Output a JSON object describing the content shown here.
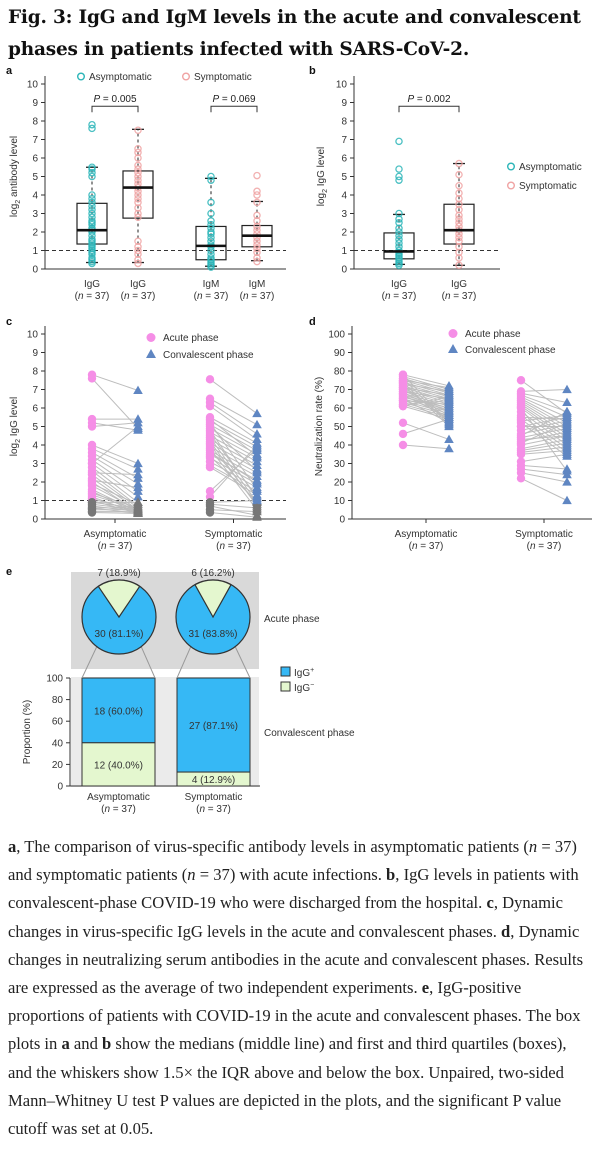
{
  "figure": {
    "title": "Fig. 3: IgG and IgM levels in the acute and convalescent phases in patients infected with SARS-CoV-2."
  },
  "colors": {
    "asymptomatic": "#2bb5b8",
    "symptomatic": "#f0a3a3",
    "acute": "#f58ee6",
    "convalescent": "#5f86c2",
    "below_cutoff": "#777777",
    "igg_positive": "#36b8f5",
    "igg_negative": "#e4f7cf",
    "panel_e_bg": "#d9d9d9",
    "panel_e_bg_light": "#ebebeb"
  },
  "chart_data": [
    {
      "panel": "a",
      "type": "box",
      "ylabel": "log2 antibody level",
      "ylim": [
        0,
        10
      ],
      "yticks": [
        0,
        1,
        2,
        3,
        4,
        5,
        6,
        7,
        8,
        9,
        10
      ],
      "cutoff_line": 1,
      "legend": [
        "Asymptomatic",
        "Symptomatic"
      ],
      "legend_placement": "top",
      "categories": [
        {
          "label": "IgG",
          "n": "(n = 37)",
          "group": "Asymptomatic"
        },
        {
          "label": "IgG",
          "n": "(n = 37)",
          "group": "Symptomatic"
        },
        {
          "label": "IgM",
          "n": "(n = 37)",
          "group": "Asymptomatic"
        },
        {
          "label": "IgM",
          "n": "(n = 37)",
          "group": "Symptomatic"
        }
      ],
      "boxes": [
        {
          "q1": 1.35,
          "median": 2.1,
          "q3": 3.55,
          "whisker_low": 0.35,
          "whisker_high": 5.5,
          "points": [
            0.3,
            0.4,
            0.5,
            0.6,
            0.8,
            0.9,
            1.0,
            1.1,
            1.2,
            1.3,
            1.4,
            1.5,
            1.6,
            1.8,
            2.0,
            2.1,
            2.2,
            2.4,
            2.5,
            2.6,
            2.8,
            3.0,
            3.2,
            3.4,
            3.6,
            3.8,
            4.0,
            5.0,
            5.2,
            5.4,
            5.5,
            7.6,
            7.8
          ]
        },
        {
          "q1": 2.75,
          "median": 4.4,
          "q3": 5.3,
          "whisker_low": 0.35,
          "whisker_high": 7.55,
          "points": [
            0.3,
            0.5,
            0.8,
            1.0,
            1.2,
            1.5,
            2.8,
            3.0,
            3.3,
            3.6,
            3.8,
            4.0,
            4.2,
            4.4,
            4.6,
            4.8,
            5.0,
            5.2,
            5.4,
            5.6,
            6.0,
            6.3,
            6.5,
            7.5
          ]
        },
        {
          "q1": 0.5,
          "median": 1.25,
          "q3": 2.3,
          "whisker_low": 0.15,
          "whisker_high": 4.9,
          "points": [
            0.1,
            0.2,
            0.3,
            0.4,
            0.5,
            0.6,
            0.8,
            1.0,
            1.2,
            1.3,
            1.5,
            1.7,
            1.9,
            2.0,
            2.2,
            2.4,
            2.6,
            3.0,
            3.6,
            4.8,
            5.0
          ]
        },
        {
          "q1": 1.2,
          "median": 1.8,
          "q3": 2.35,
          "whisker_low": 0.45,
          "whisker_high": 3.65,
          "points": [
            0.4,
            0.6,
            0.9,
            1.1,
            1.3,
            1.5,
            1.7,
            1.9,
            2.1,
            2.3,
            2.6,
            2.9,
            3.6,
            4.0,
            4.2,
            5.05
          ]
        }
      ],
      "comparisons": [
        {
          "between": [
            0,
            1
          ],
          "label": "P = 0.005",
          "y": 8.8
        },
        {
          "between": [
            2,
            3
          ],
          "label": "P = 0.069",
          "y": 8.8
        }
      ]
    },
    {
      "panel": "b",
      "type": "box",
      "ylabel": "log2 IgG level",
      "ylim": [
        0,
        10
      ],
      "yticks": [
        0,
        1,
        2,
        3,
        4,
        5,
        6,
        7,
        8,
        9,
        10
      ],
      "cutoff_line": 1,
      "legend": [
        "Asymptomatic",
        "Symptomatic"
      ],
      "legend_placement": "right",
      "categories": [
        {
          "label": "IgG",
          "n": "(n = 37)",
          "group": "Asymptomatic"
        },
        {
          "label": "IgG",
          "n": "(n = 37)",
          "group": "Symptomatic"
        }
      ],
      "boxes": [
        {
          "q1": 0.55,
          "median": 0.95,
          "q3": 1.95,
          "whisker_low": 0.25,
          "whisker_high": 2.95,
          "points": [
            0.2,
            0.3,
            0.4,
            0.5,
            0.6,
            0.7,
            0.8,
            0.9,
            1.0,
            1.2,
            1.4,
            1.6,
            1.8,
            2.0,
            2.2,
            2.5,
            2.7,
            3.0,
            4.8,
            5.0,
            5.4,
            6.9
          ]
        },
        {
          "q1": 1.35,
          "median": 2.1,
          "q3": 3.5,
          "whisker_low": 0.2,
          "whisker_high": 5.7,
          "points": [
            0.2,
            0.6,
            0.9,
            1.2,
            1.5,
            1.7,
            1.9,
            2.1,
            2.3,
            2.5,
            2.7,
            2.9,
            3.2,
            3.5,
            3.8,
            4.1,
            4.5,
            5.1,
            5.7
          ]
        }
      ],
      "comparisons": [
        {
          "between": [
            0,
            1
          ],
          "label": "P = 0.002",
          "y": 8.8
        }
      ]
    },
    {
      "panel": "c",
      "type": "paired-scatter",
      "ylabel": "log2 IgG level",
      "ylim": [
        0,
        10
      ],
      "yticks": [
        0,
        1,
        2,
        3,
        4,
        5,
        6,
        7,
        8,
        9,
        10
      ],
      "cutoff_line": 1,
      "legend": [
        "Acute phase",
        "Convalescent phase"
      ],
      "legend_placement": "top",
      "categories": [
        {
          "label": "Asymptomatic",
          "n": "(n = 37)"
        },
        {
          "label": "Symptomatic",
          "n": "(n = 37)"
        }
      ],
      "pairs": [
        [
          [
            7.8,
            6.95
          ],
          [
            7.6,
            4.9
          ],
          [
            5.4,
            5.4
          ],
          [
            5.2,
            4.8
          ],
          [
            5.0,
            5.2
          ],
          [
            4.0,
            3.0
          ],
          [
            3.8,
            2.7
          ],
          [
            3.6,
            2.2
          ],
          [
            3.4,
            1.9
          ],
          [
            3.2,
            1.5
          ],
          [
            3.0,
            1.2
          ],
          [
            2.8,
            0.9
          ],
          [
            2.6,
            0.7
          ],
          [
            2.4,
            0.6
          ],
          [
            2.2,
            0.5
          ],
          [
            2.0,
            0.4
          ],
          [
            1.8,
            0.5
          ],
          [
            1.6,
            0.4
          ],
          [
            1.5,
            0.3
          ],
          [
            1.4,
            0.6
          ],
          [
            1.3,
            0.5
          ],
          [
            1.2,
            0.3
          ],
          [
            1.1,
            0.4
          ],
          [
            1.0,
            0.3
          ],
          [
            0.9,
            0.6
          ],
          [
            0.8,
            0.5
          ],
          [
            0.7,
            0.4
          ],
          [
            0.6,
            0.3
          ],
          [
            0.5,
            0.5
          ],
          [
            0.4,
            0.4
          ],
          [
            0.35,
            0.3
          ],
          [
            3.0,
            5.0
          ],
          [
            2.5,
            2.4
          ],
          [
            2.1,
            1.7
          ],
          [
            1.9,
            0.8
          ],
          [
            0.9,
            0.9
          ],
          [
            0.6,
            0.6
          ]
        ],
        [
          [
            7.55,
            5.7
          ],
          [
            6.5,
            5.1
          ],
          [
            6.3,
            4.6
          ],
          [
            6.1,
            4.3
          ],
          [
            5.5,
            4.1
          ],
          [
            5.3,
            3.9
          ],
          [
            5.1,
            3.7
          ],
          [
            4.9,
            3.5
          ],
          [
            4.7,
            3.3
          ],
          [
            4.5,
            3.1
          ],
          [
            4.3,
            2.9
          ],
          [
            4.1,
            2.7
          ],
          [
            3.9,
            2.5
          ],
          [
            3.7,
            2.3
          ],
          [
            3.5,
            2.1
          ],
          [
            3.3,
            1.9
          ],
          [
            3.1,
            1.7
          ],
          [
            2.9,
            1.5
          ],
          [
            2.8,
            1.3
          ],
          [
            4.8,
            1.1
          ],
          [
            4.4,
            0.9
          ],
          [
            4.0,
            0.8
          ],
          [
            3.6,
            2.0
          ],
          [
            5.0,
            2.6
          ],
          [
            5.4,
            3.4
          ],
          [
            5.2,
            1.6
          ],
          [
            4.6,
            1.2
          ],
          [
            4.2,
            0.7
          ],
          [
            3.8,
            0.5
          ],
          [
            3.4,
            0.95
          ],
          [
            1.5,
            3.8
          ],
          [
            1.2,
            4.0
          ],
          [
            0.9,
            1.0
          ],
          [
            0.8,
            0.6
          ],
          [
            0.7,
            0.2
          ],
          [
            0.35,
            0.1
          ],
          [
            0.5,
            0.4
          ]
        ]
      ]
    },
    {
      "panel": "d",
      "type": "paired-scatter",
      "ylabel": "Neutralization rate (%)",
      "ylim": [
        0,
        100
      ],
      "yticks": [
        0,
        10,
        20,
        30,
        40,
        50,
        60,
        70,
        80,
        90,
        100
      ],
      "legend": [
        "Acute phase",
        "Convalescent phase"
      ],
      "legend_placement": "top",
      "categories": [
        {
          "label": "Asymptomatic",
          "n": "(n = 37)"
        },
        {
          "label": "Symptomatic",
          "n": "(n = 37)"
        }
      ],
      "pairs": [
        [
          [
            78,
            72
          ],
          [
            77,
            70
          ],
          [
            76,
            69
          ],
          [
            75,
            68
          ],
          [
            74,
            67
          ],
          [
            73,
            66
          ],
          [
            72,
            65
          ],
          [
            71,
            64
          ],
          [
            70,
            63
          ],
          [
            69,
            62
          ],
          [
            68,
            61
          ],
          [
            67,
            60
          ],
          [
            66,
            59
          ],
          [
            65,
            58
          ],
          [
            64,
            57
          ],
          [
            63,
            56
          ],
          [
            62,
            55
          ],
          [
            61,
            54
          ],
          [
            78,
            52
          ],
          [
            76,
            51
          ],
          [
            74,
            50
          ],
          [
            72,
            53
          ],
          [
            70,
            56
          ],
          [
            68,
            58
          ],
          [
            66,
            60
          ],
          [
            64,
            62
          ],
          [
            62,
            64
          ],
          [
            61,
            66
          ],
          [
            75,
            71
          ],
          [
            73,
            69
          ],
          [
            71,
            67
          ],
          [
            69,
            65
          ],
          [
            67,
            55
          ],
          [
            65,
            52
          ],
          [
            52,
            43
          ],
          [
            46,
            54
          ],
          [
            40,
            38
          ]
        ],
        [
          [
            75,
            57
          ],
          [
            69,
            70
          ],
          [
            68,
            63
          ],
          [
            67,
            58
          ],
          [
            66,
            55
          ],
          [
            65,
            52
          ],
          [
            64,
            50
          ],
          [
            63,
            48
          ],
          [
            62,
            46
          ],
          [
            61,
            44
          ],
          [
            60,
            42
          ],
          [
            58,
            40
          ],
          [
            56,
            38
          ],
          [
            54,
            36
          ],
          [
            52,
            34
          ],
          [
            50,
            55
          ],
          [
            48,
            53
          ],
          [
            46,
            51
          ],
          [
            44,
            49
          ],
          [
            42,
            47
          ],
          [
            40,
            45
          ],
          [
            38,
            43
          ],
          [
            37,
            41
          ],
          [
            36,
            39
          ],
          [
            35,
            37
          ],
          [
            31,
            35
          ],
          [
            29,
            27
          ],
          [
            27,
            24
          ],
          [
            25,
            20
          ],
          [
            22,
            10
          ],
          [
            60,
            26
          ],
          [
            55,
            54
          ],
          [
            53,
            56
          ],
          [
            50,
            50
          ],
          [
            45,
            58
          ],
          [
            43,
            45
          ],
          [
            41,
            52
          ]
        ]
      ]
    },
    {
      "panel": "e",
      "type": "pie+stacked-bar",
      "pies": {
        "label": "Acute phase",
        "items": [
          {
            "group": "Asymptomatic",
            "positive": {
              "count": 30,
              "label": "30 (81.1%)",
              "percent": 81.1
            },
            "negative": {
              "count": 7,
              "label": "7 (18.9%)",
              "percent": 18.9
            }
          },
          {
            "group": "Symptomatic",
            "positive": {
              "count": 31,
              "label": "31 (83.8%)",
              "percent": 83.8
            },
            "negative": {
              "count": 6,
              "label": "6 (16.2%)",
              "percent": 16.2
            }
          }
        ]
      },
      "bars": {
        "label": "Convalescent phase",
        "ylabel": "Proportion (%)",
        "ylim": [
          0,
          100
        ],
        "yticks": [
          0,
          20,
          40,
          60,
          80,
          100
        ],
        "categories": [
          {
            "label": "Asymptomatic",
            "n": "(n = 37)"
          },
          {
            "label": "Symptomatic",
            "n": "(n = 37)"
          }
        ],
        "series": [
          {
            "name": "IgG+",
            "values": [
              60.0,
              87.1
            ],
            "labels": [
              "18 (60.0%)",
              "27 (87.1%)"
            ]
          },
          {
            "name": "IgG−",
            "values": [
              40.0,
              12.9
            ],
            "labels": [
              "12 (40.0%)",
              "4 (12.9%)"
            ]
          }
        ]
      },
      "legend": [
        {
          "name": "IgG",
          "sup": "+"
        },
        {
          "name": "IgG",
          "sup": "−"
        }
      ]
    }
  ],
  "caption": {
    "segments": [
      {
        "b": "a"
      },
      {
        "t": ", The comparison of virus-specific antibody levels in asymptomatic patients ("
      },
      {
        "i": "n"
      },
      {
        "t": " = 37) and symptomatic patients ("
      },
      {
        "i": "n"
      },
      {
        "t": " = 37) with acute infections. "
      },
      {
        "b": "b"
      },
      {
        "t": ", IgG levels in patients with convalescent-phase COVID-19 who were discharged from the hospital. "
      },
      {
        "b": "c"
      },
      {
        "t": ", Dynamic changes in virus-specific IgG levels in the acute and convalescent phases. "
      },
      {
        "b": "d"
      },
      {
        "t": ", Dynamic changes in neutralizing serum antibodies in the acute and convalescent phases. Results are expressed as the average of two independent experiments. "
      },
      {
        "b": "e"
      },
      {
        "t": ", IgG-positive proportions of patients with COVID-19 in the acute and convalescent phases. The box plots in "
      },
      {
        "b": "a"
      },
      {
        "t": " and "
      },
      {
        "b": "b"
      },
      {
        "t": " show the medians (middle line) and first and third quartiles (boxes), and the whiskers show 1.5× the IQR above and below the box. Unpaired, two-sided Mann–Whitney U test P values are depicted in the plots, and the significant P value cutoff was set at 0.05."
      }
    ]
  }
}
